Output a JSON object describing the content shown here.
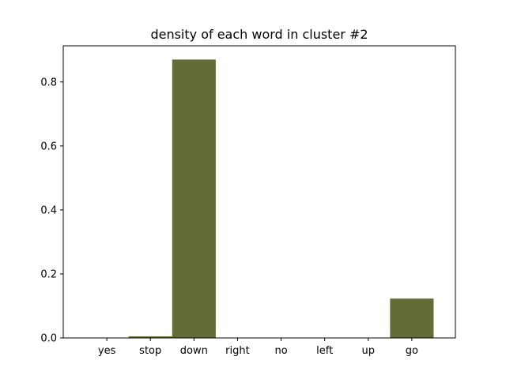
{
  "chart_data": {
    "type": "bar",
    "title": "density of each word in cluster #2",
    "xlabel": "",
    "ylabel": "",
    "categories": [
      "yes",
      "stop",
      "down",
      "right",
      "no",
      "left",
      "up",
      "go"
    ],
    "values": [
      0,
      0.005,
      0.87,
      0,
      0,
      0,
      0,
      0.123
    ],
    "ylim": [
      0,
      0.913
    ],
    "yticks": [
      "0.0",
      "0.2",
      "0.4",
      "0.6",
      "0.8"
    ],
    "bar_color": "#616c37",
    "grid": false,
    "legend": "none"
  }
}
